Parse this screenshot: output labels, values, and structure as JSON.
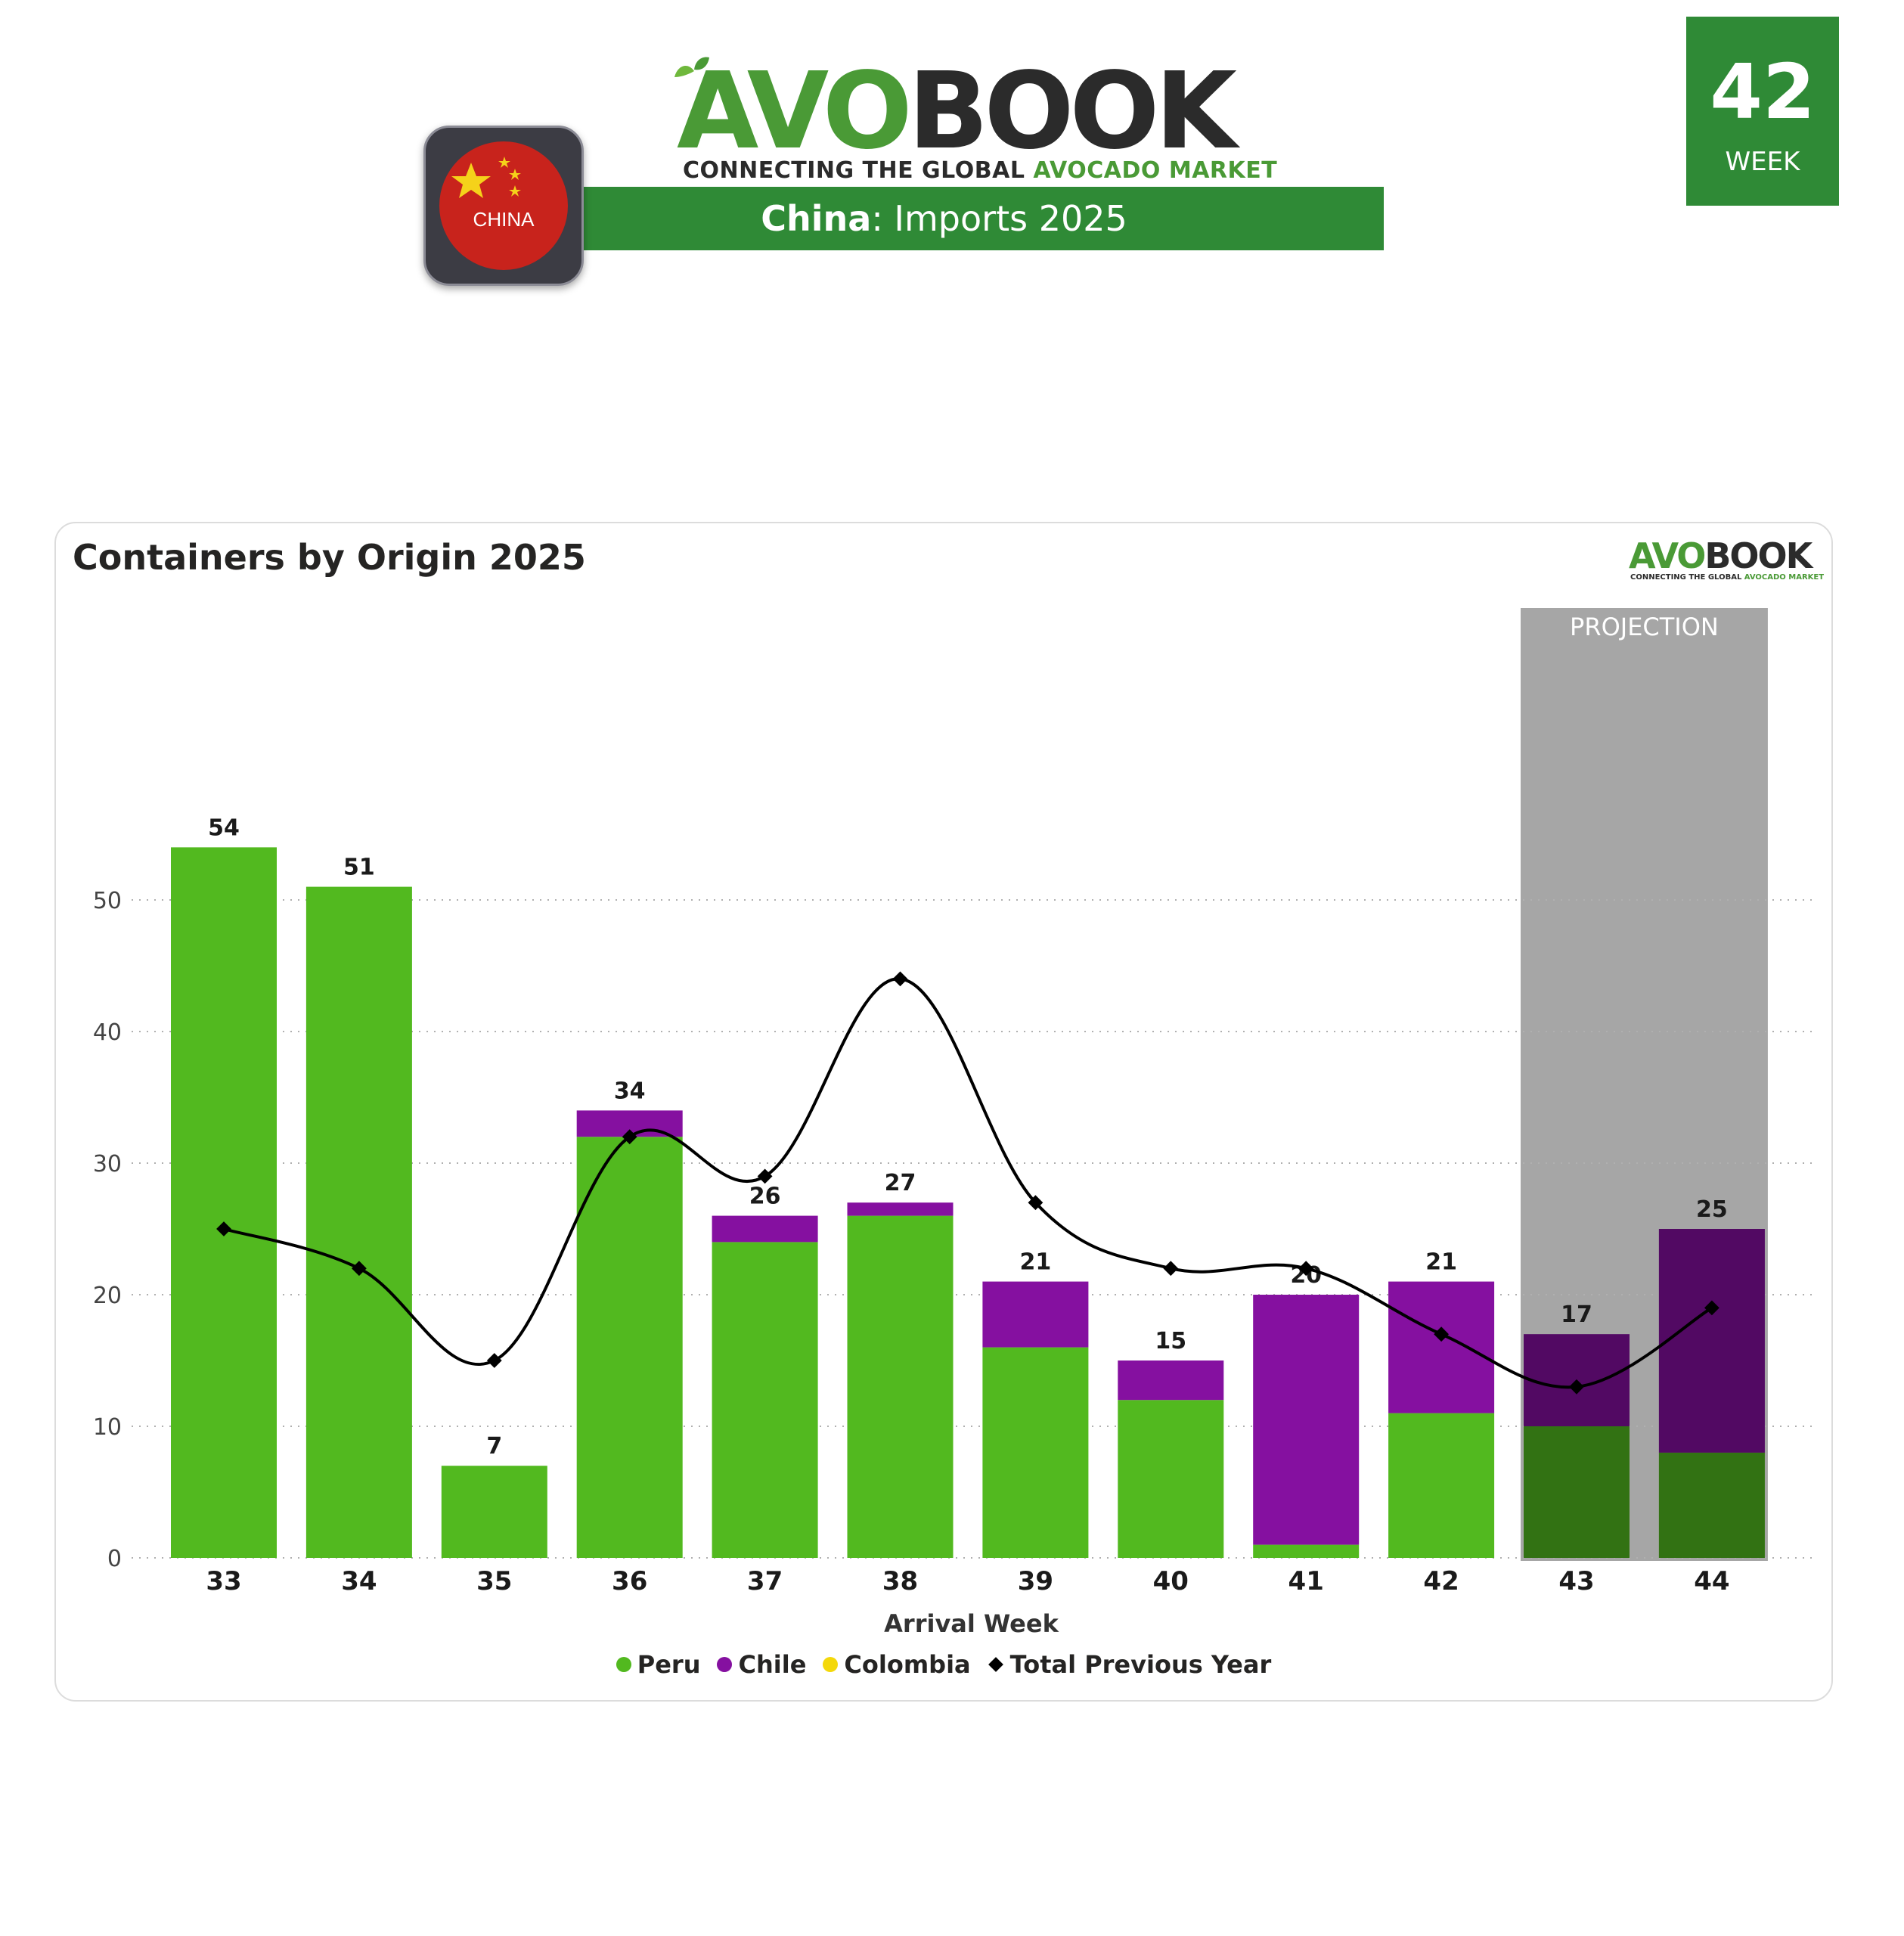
{
  "header": {
    "logo_avo": "AVO",
    "logo_book": "BOOK",
    "tagline_prefix": "CONNECTING THE GLOBAL ",
    "tagline_green": "AVOCADO MARKET",
    "banner_country": "China",
    "banner_rest": ": Imports 2025",
    "flag_label": "CHINA",
    "week_number": "42",
    "week_label": "WEEK"
  },
  "card": {
    "title": "Containers by Origin 2025",
    "mini_logo_avo": "AVO",
    "mini_logo_book": "BOOK",
    "mini_tag_prefix": "CONNECTING THE GLOBAL ",
    "mini_tag_green": "AVOCADO MARKET"
  },
  "colors": {
    "peru": "#52b91f",
    "chile": "#8510a0",
    "colombia": "#f4d80a",
    "previous_year": "#000000",
    "projection_band": "#a6a6a6",
    "brand_green": "#2f8a36"
  },
  "chart_data": {
    "type": "bar",
    "stacked": true,
    "title": "Containers by Origin 2025",
    "xlabel": "Arrival Week",
    "ylabel": "",
    "ylim": [
      0,
      60
    ],
    "yticks": [
      0,
      10,
      20,
      30,
      40,
      50
    ],
    "grid": true,
    "legend_position": "bottom-center",
    "categories": [
      "33",
      "34",
      "35",
      "36",
      "37",
      "38",
      "39",
      "40",
      "41",
      "42",
      "43",
      "44"
    ],
    "series": [
      {
        "name": "Peru",
        "values": [
          54,
          51,
          7,
          32,
          24,
          26,
          16,
          12,
          1,
          11,
          10,
          8
        ]
      },
      {
        "name": "Chile",
        "values": [
          0,
          0,
          0,
          2,
          2,
          1,
          5,
          3,
          19,
          10,
          7,
          17
        ]
      },
      {
        "name": "Colombia",
        "values": [
          0,
          0,
          0,
          0,
          0,
          0,
          0,
          0,
          0,
          0,
          0,
          0
        ]
      }
    ],
    "totals": [
      54,
      51,
      7,
      34,
      26,
      27,
      21,
      15,
      20,
      21,
      17,
      25
    ],
    "line_series": {
      "name": "Total Previous Year",
      "values": [
        25,
        22,
        15,
        32,
        29,
        44,
        27,
        22,
        22,
        17,
        13,
        19
      ]
    },
    "projection": {
      "label": "PROJECTION",
      "categories": [
        "43",
        "44"
      ]
    }
  }
}
